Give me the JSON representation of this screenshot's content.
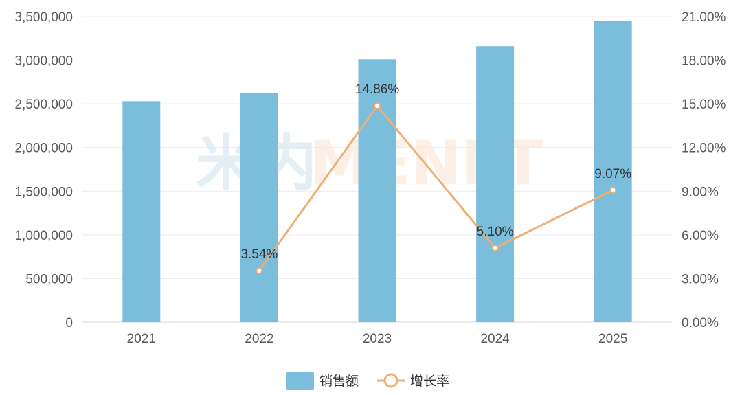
{
  "chart_data": {
    "type": "bar",
    "categories": [
      "2021",
      "2022",
      "2023",
      "2024",
      "2025"
    ],
    "series": [
      {
        "name": "销售额",
        "type": "bar",
        "axis": "left",
        "color": "#7bbedb",
        "values": [
          2530000,
          2620000,
          3010000,
          3160000,
          3450000
        ]
      },
      {
        "name": "增长率",
        "type": "line",
        "axis": "right",
        "color": "#efae73",
        "values": [
          null,
          3.54,
          14.86,
          5.1,
          9.07
        ],
        "labels": [
          "",
          "3.54%",
          "14.86%",
          "5.10%",
          "9.07%"
        ]
      }
    ],
    "y_left": {
      "lim": [
        0,
        3500000
      ],
      "ticks": [
        "0",
        "500,000",
        "1,000,000",
        "1,500,000",
        "2,000,000",
        "2,500,000",
        "3,000,000",
        "3,500,000"
      ]
    },
    "y_right": {
      "lim": [
        0,
        21
      ],
      "ticks": [
        "0.00%",
        "3.00%",
        "6.00%",
        "9.00%",
        "12.00%",
        "15.00%",
        "18.00%",
        "21.00%"
      ]
    },
    "grid": true,
    "legend": "bottom-center",
    "watermark": {
      "glyph": "米内",
      "text": "MENET",
      "glyph_color": "#cfe3ee",
      "text_color": "#fbe3d2"
    }
  }
}
